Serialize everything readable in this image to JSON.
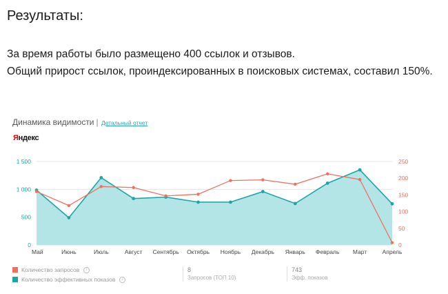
{
  "page": {
    "heading": "Результаты:",
    "summary": [
      "За время работы было размещено 400 ссылок и отзывов.",
      "Общий прирост ссылок, проиндексированных в поисковых системах, составил 150%."
    ]
  },
  "widget": {
    "title": "Динамика видимости",
    "separator": "|",
    "report_link": "Детальный отчет",
    "source_logo": "Яндекс"
  },
  "legend": {
    "items": [
      {
        "label": "Количество запросов",
        "color": "#f07060"
      },
      {
        "label": "Количество эффективных показов",
        "color": "#1aa6a6"
      }
    ]
  },
  "stats": [
    {
      "value": "8",
      "label": "Запросов (ТОП 10)"
    },
    {
      "value": "743",
      "label": "Эфф. показов"
    }
  ],
  "chart_data": {
    "type": "area",
    "categories": [
      "Май",
      "Июнь",
      "Июль",
      "Август",
      "Сентябрь",
      "Октябрь",
      "Ноябрь",
      "Декабрь",
      "Январь",
      "Февраль",
      "Март",
      "Апрель"
    ],
    "series": [
      {
        "name": "Количество эффективных показов",
        "axis": "left",
        "style": "area",
        "color": "#1aa6a6",
        "fill": "#b3e4e6",
        "values": [
          985,
          490,
          1210,
          835,
          860,
          770,
          770,
          960,
          745,
          1110,
          1350,
          740
        ]
      },
      {
        "name": "Количество запросов",
        "axis": "right",
        "style": "line",
        "color": "#f07060",
        "values": [
          160,
          118,
          175,
          172,
          147,
          152,
          193,
          195,
          182,
          213,
          196,
          7
        ]
      }
    ],
    "y_left": {
      "min": 0,
      "max": 1500,
      "ticks": [
        0,
        500,
        1000,
        1500
      ],
      "tick_labels": [
        "0",
        "500",
        "1 000",
        "1 500"
      ],
      "color": "#1aa6a6"
    },
    "y_right": {
      "min": 0,
      "max": 250,
      "ticks": [
        0,
        50,
        100,
        150,
        200,
        250
      ],
      "tick_labels": [
        "0",
        "50",
        "100",
        "150",
        "200",
        "250"
      ],
      "color": "#f07060"
    },
    "grid": true,
    "legend_position": "bottom-left"
  }
}
